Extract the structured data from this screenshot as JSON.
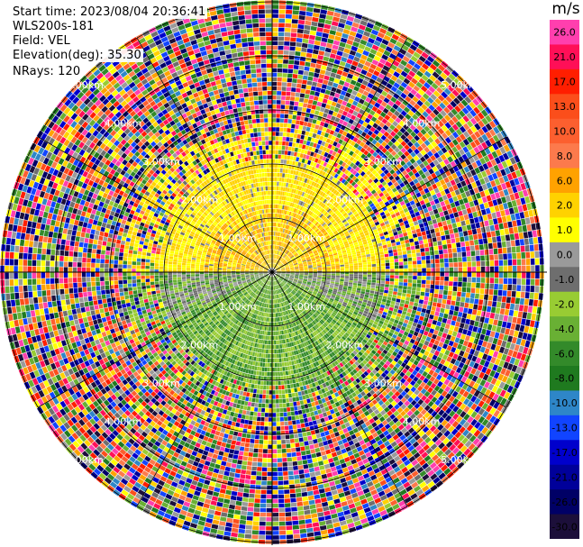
{
  "meta": {
    "start_time": "Start time: 2023/08/04 20:36:41",
    "instrument": "WLS200s-181",
    "field": "Field: VEL",
    "elevation": "Elevation(deg): 35.30",
    "nrays": "NRays: 120"
  },
  "colorbar": {
    "unit": "m/s",
    "levels": [
      {
        "label": "26.0",
        "color": "#ff3fae"
      },
      {
        "label": "21.0",
        "color": "#ff0f57"
      },
      {
        "label": "17.0",
        "color": "#ff1e00"
      },
      {
        "label": "13.0",
        "color": "#fb4e1b"
      },
      {
        "label": "10.0",
        "color": "#fc5f2f"
      },
      {
        "label": "8.0",
        "color": "#fc7a4c"
      },
      {
        "label": "6.0",
        "color": "#ffa200"
      },
      {
        "label": "2.0",
        "color": "#ffd200"
      },
      {
        "label": "1.0",
        "color": "#ffff00"
      },
      {
        "label": "0.0",
        "color": "#9a9a9a"
      },
      {
        "label": "-1.0",
        "color": "#6e6e6e"
      },
      {
        "label": "-2.0",
        "color": "#98cc33"
      },
      {
        "label": "-4.0",
        "color": "#69b034"
      },
      {
        "label": "-6.0",
        "color": "#338a2a"
      },
      {
        "label": "-8.0",
        "color": "#1f7a1f"
      },
      {
        "label": "-10.0",
        "color": "#2e86c8"
      },
      {
        "label": "-13.0",
        "color": "#1144ff"
      },
      {
        "label": "-17.0",
        "color": "#0000cc"
      },
      {
        "label": "-21.0",
        "color": "#00009a"
      },
      {
        "label": "-26.0",
        "color": "#000066"
      },
      {
        "label": "-30.0",
        "color": "#1c0f3a"
      }
    ]
  },
  "rings": {
    "labels": [
      "1.00km",
      "2.00km",
      "3.00km",
      "4.00km",
      "5.00km"
    ]
  },
  "map_style": {
    "line_color": "#000000",
    "ring_line_color": "#000000",
    "background": "#ffffff"
  }
}
